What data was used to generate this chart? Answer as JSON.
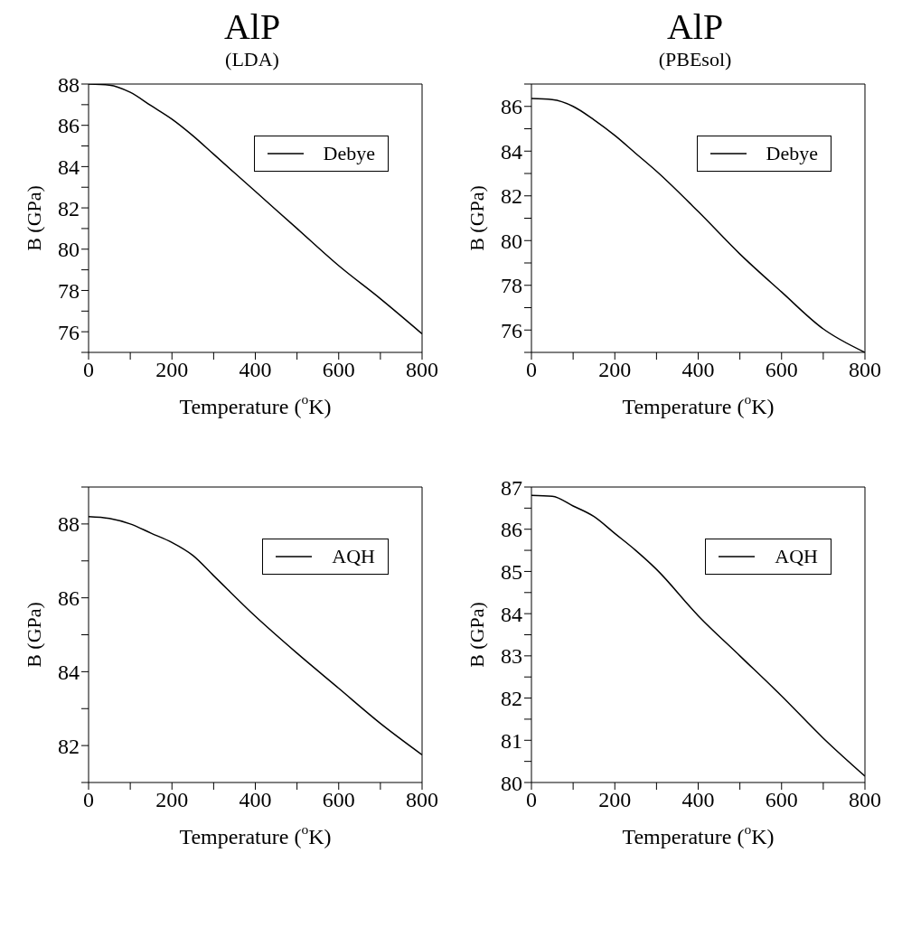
{
  "chart_data": [
    {
      "type": "line",
      "title": "AlP",
      "subtitle": "(LDA)",
      "xlabel": "Temperature ($^{o}$K)",
      "ylabel": "B (GPa)",
      "x": [
        0,
        50,
        100,
        150,
        200,
        250,
        300,
        400,
        500,
        600,
        700,
        800
      ],
      "series": [
        {
          "name": "Debye",
          "color": "#000000",
          "values": [
            88.0,
            87.95,
            87.6,
            86.95,
            86.3,
            85.5,
            84.6,
            82.8,
            81.0,
            79.2,
            77.6,
            75.9
          ]
        }
      ],
      "xlim": [
        0,
        800
      ],
      "xticks": [
        0,
        {
          "value": 100,
          "label": null
        },
        200,
        {
          "value": 300,
          "label": null
        },
        400,
        {
          "value": 500,
          "label": null
        },
        600,
        {
          "value": 700,
          "label": null
        },
        800
      ],
      "ylim": [
        75,
        88
      ],
      "yticks": [
        {
          "value": 75,
          "label": null
        },
        76,
        {
          "value": 77,
          "label": null
        },
        78,
        {
          "value": 79,
          "label": null
        },
        80,
        {
          "value": 81,
          "label": null
        },
        82,
        {
          "value": 83,
          "label": null
        },
        84,
        {
          "value": 85,
          "label": null
        },
        86,
        {
          "value": 87,
          "label": null
        },
        88
      ],
      "grid": false,
      "legend": "top right",
      "marker": "none",
      "line_style": "solid"
    },
    {
      "type": "line",
      "title": "AlP",
      "subtitle": "(PBEsol)",
      "xlabel": "Temperature ($^{o}$K)",
      "ylabel": "B (GPa)",
      "x": [
        0,
        50,
        100,
        150,
        200,
        250,
        300,
        400,
        500,
        600,
        700,
        800
      ],
      "series": [
        {
          "name": "Debye",
          "color": "#000000",
          "values": [
            86.35,
            86.3,
            86.0,
            85.4,
            84.7,
            83.9,
            83.1,
            81.3,
            79.4,
            77.7,
            76.05,
            75.0
          ]
        }
      ],
      "xlim": [
        0,
        800
      ],
      "xticks": [
        0,
        {
          "value": 100,
          "label": null
        },
        200,
        {
          "value": 300,
          "label": null
        },
        400,
        {
          "value": 500,
          "label": null
        },
        600,
        {
          "value": 700,
          "label": null
        },
        800
      ],
      "ylim": [
        75,
        87
      ],
      "yticks": [
        {
          "value": 75,
          "label": null
        },
        76,
        {
          "value": 77,
          "label": null
        },
        78,
        {
          "value": 79,
          "label": null
        },
        80,
        {
          "value": 81,
          "label": null
        },
        82,
        {
          "value": 83,
          "label": null
        },
        84,
        {
          "value": 85,
          "label": null
        },
        86,
        {
          "value": 87,
          "label": null
        }
      ],
      "grid": false,
      "legend": "top right",
      "marker": "none",
      "line_style": "solid"
    },
    {
      "type": "line",
      "xlabel": "Temperature ($^{o}$K)",
      "ylabel": "B (GPa)",
      "x": [
        0,
        50,
        100,
        150,
        200,
        250,
        300,
        400,
        500,
        600,
        700,
        800
      ],
      "series": [
        {
          "name": "AQH",
          "color": "#000000",
          "values": [
            88.2,
            88.15,
            88.0,
            87.75,
            87.5,
            87.15,
            86.6,
            85.5,
            84.5,
            83.55,
            82.6,
            81.75
          ]
        }
      ],
      "xlim": [
        0,
        800
      ],
      "xticks": [
        0,
        {
          "value": 100,
          "label": null
        },
        200,
        {
          "value": 300,
          "label": null
        },
        400,
        {
          "value": 500,
          "label": null
        },
        600,
        {
          "value": 700,
          "label": null
        },
        800
      ],
      "ylim": [
        81,
        89
      ],
      "yticks": [
        {
          "value": 81,
          "label": null
        },
        82,
        {
          "value": 83,
          "label": null
        },
        84,
        {
          "value": 85,
          "label": null
        },
        86,
        {
          "value": 87,
          "label": null
        },
        88,
        {
          "value": 89,
          "label": null
        }
      ],
      "grid": false,
      "legend": "top right",
      "marker": "none",
      "line_style": "solid"
    },
    {
      "type": "line",
      "xlabel": "Temperature ($^{o}$K)",
      "ylabel": "B (GPa)",
      "x": [
        0,
        50,
        100,
        150,
        200,
        250,
        300,
        400,
        500,
        600,
        700,
        800
      ],
      "series": [
        {
          "name": "AQH",
          "color": "#000000",
          "values": [
            86.8,
            86.78,
            86.55,
            86.3,
            85.9,
            85.5,
            85.05,
            83.95,
            83.0,
            82.05,
            81.05,
            80.15
          ]
        }
      ],
      "xlim": [
        0,
        800
      ],
      "xticks": [
        0,
        {
          "value": 100,
          "label": null
        },
        200,
        {
          "value": 300,
          "label": null
        },
        400,
        {
          "value": 500,
          "label": null
        },
        600,
        {
          "value": 700,
          "label": null
        },
        800
      ],
      "ylim": [
        80,
        87
      ],
      "yticks": [
        80,
        {
          "value": 80.5,
          "label": null
        },
        81,
        {
          "value": 81.5,
          "label": null
        },
        82,
        {
          "value": 82.5,
          "label": null
        },
        83,
        {
          "value": 83.5,
          "label": null
        },
        84,
        {
          "value": 84.5,
          "label": null
        },
        85,
        {
          "value": 85.5,
          "label": null
        },
        86,
        {
          "value": 86.5,
          "label": null
        },
        87
      ],
      "grid": false,
      "legend": "top right",
      "marker": "none",
      "line_style": "solid"
    }
  ]
}
